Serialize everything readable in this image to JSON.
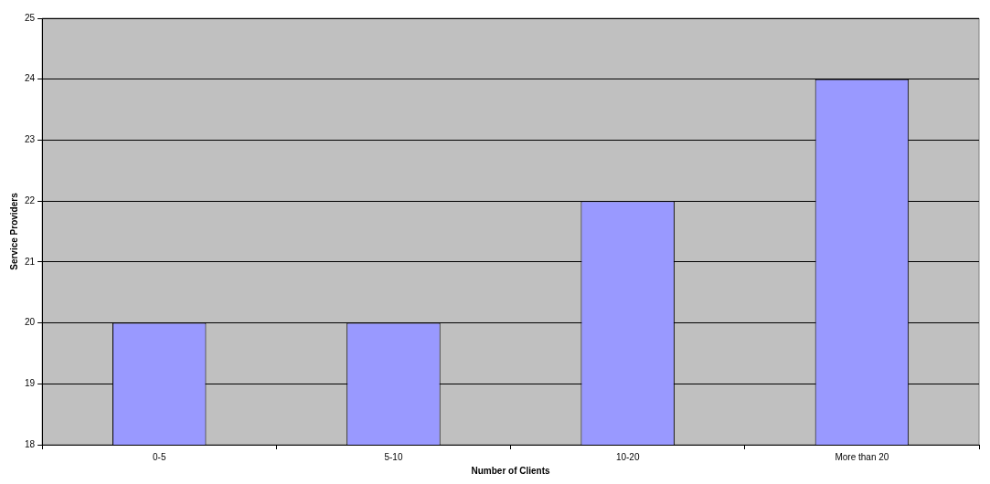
{
  "chart_data": {
    "type": "bar",
    "xlabel": "Number of Clients",
    "ylabel": "Service Providers",
    "categories": [
      "0-5",
      "5-10",
      "10-20",
      "More than 20"
    ],
    "values": [
      20,
      20,
      22,
      24
    ],
    "color": "#9999ff",
    "ylim": [
      18,
      25
    ],
    "yticks": [
      18,
      19,
      20,
      21,
      22,
      23,
      24,
      25
    ],
    "grid": "y",
    "legend": false
  }
}
